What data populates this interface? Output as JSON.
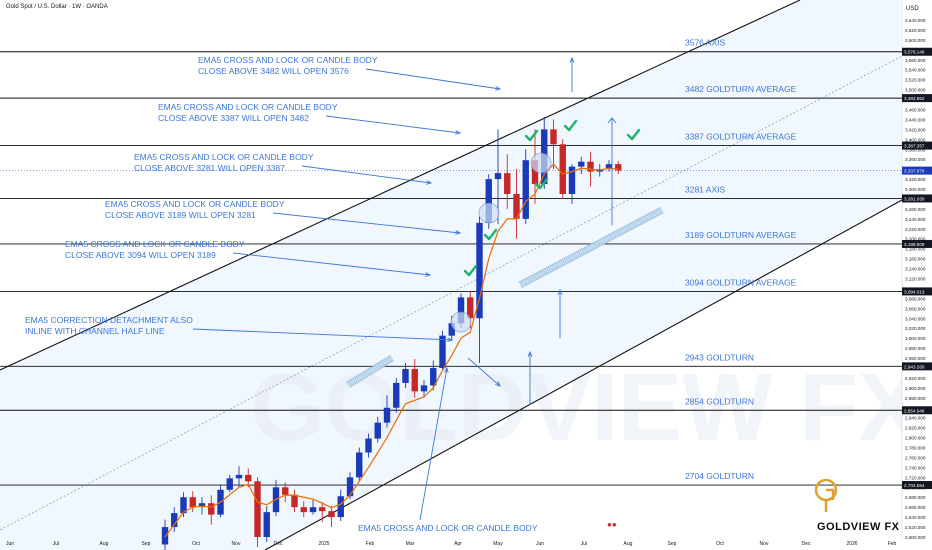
{
  "header": {
    "symbol_title": "Gold Spot / U.S. Dollar · 1W · OANDA",
    "currency": "USD"
  },
  "brand": {
    "name": "GOLDVIEW FX",
    "watermark": "GOLDVIEW FX"
  },
  "colors": {
    "up": "#1a3ab8",
    "down": "#c62828",
    "ema": "#ef6c00",
    "annotation": "#3a78d8",
    "check": "#1db36b",
    "level_line": "#111111",
    "channel_fill": "#e6f0ff"
  },
  "chart_data": {
    "type": "candlestick",
    "ylim": [
      2580,
      3650
    ],
    "y_ticks": [
      2600,
      2620,
      2640,
      2660,
      2680,
      2700,
      2720,
      2740,
      2760,
      2780,
      2800,
      2820,
      2840,
      2860,
      2880,
      2900,
      2920,
      2940,
      2960,
      2980,
      3000,
      3020,
      3040,
      3060,
      3080,
      3100,
      3120,
      3140,
      3160,
      3180,
      3200,
      3220,
      3240,
      3260,
      3280,
      3300,
      3320,
      3340,
      3360,
      3380,
      3400,
      3420,
      3440,
      3460,
      3480,
      3500,
      3520,
      3540,
      3560,
      3580,
      3600,
      3620,
      3640
    ],
    "x_ticks": [
      "Jun",
      "Jul",
      "Aug",
      "Sep",
      "Oct",
      "Nov",
      "Dec",
      "2025",
      "Feb",
      "Mar",
      "Apr",
      "May",
      "Jun",
      "Jul",
      "Aug",
      "Sep",
      "Oct",
      "Nov",
      "Dec",
      "2026",
      "Feb"
    ],
    "levels": [
      {
        "price": 3576.146,
        "tag": "3,576.146",
        "label": "3576 AXIS"
      },
      {
        "price": 3482.862,
        "tag": "3,482.862",
        "label": "3482 GOLDTURN AVERAGE"
      },
      {
        "price": 3387.357,
        "tag": "3,387.357",
        "label": "3387 GOLDTURN AVERAGE"
      },
      {
        "price": 3281.03,
        "tag": "3,281.030",
        "label": "3281 AXIS"
      },
      {
        "price": 3189.509,
        "tag": "3,189.509",
        "label": "3189 GOLDTURN AVERAGE"
      },
      {
        "price": 3094.013,
        "tag": "3,094.013",
        "label": "3094 GOLDTURN AVERAGE"
      },
      {
        "price": 2943.26,
        "tag": "2,943.260",
        "label": "2943 GOLDTURN"
      },
      {
        "price": 2854.946,
        "tag": "2,854.946",
        "label": "2854 GOLDTURN"
      },
      {
        "price": 2704.554,
        "tag": "2,704.554",
        "label": "2704 GOLDTURN"
      }
    ],
    "current_price": {
      "price": 3337.07,
      "tag": "3,337.070"
    },
    "candles": [
      [
        2585,
        2620,
        2570,
        2635
      ],
      [
        2620,
        2648,
        2610,
        2660
      ],
      [
        2648,
        2680,
        2640,
        2690
      ],
      [
        2680,
        2660,
        2650,
        2692
      ],
      [
        2660,
        2668,
        2645,
        2680
      ],
      [
        2668,
        2645,
        2625,
        2684
      ],
      [
        2645,
        2695,
        2640,
        2705
      ],
      [
        2695,
        2718,
        2690,
        2725
      ],
      [
        2718,
        2725,
        2700,
        2742
      ],
      [
        2725,
        2712,
        2700,
        2738
      ],
      [
        2712,
        2600,
        2580,
        2720
      ],
      [
        2600,
        2650,
        2590,
        2662
      ],
      [
        2650,
        2700,
        2642,
        2715
      ],
      [
        2700,
        2685,
        2670,
        2710
      ],
      [
        2685,
        2660,
        2650,
        2695
      ],
      [
        2660,
        2650,
        2640,
        2672
      ],
      [
        2650,
        2660,
        2645,
        2675
      ],
      [
        2660,
        2652,
        2630,
        2670
      ],
      [
        2652,
        2640,
        2620,
        2662
      ],
      [
        2640,
        2682,
        2632,
        2695
      ],
      [
        2682,
        2720,
        2676,
        2730
      ],
      [
        2720,
        2770,
        2712,
        2780
      ],
      [
        2770,
        2798,
        2760,
        2808
      ],
      [
        2798,
        2830,
        2790,
        2842
      ],
      [
        2830,
        2860,
        2820,
        2885
      ],
      [
        2860,
        2910,
        2850,
        2920
      ],
      [
        2910,
        2938,
        2900,
        2950
      ],
      [
        2938,
        2893,
        2880,
        2958
      ],
      [
        2893,
        2905,
        2880,
        2915
      ],
      [
        2905,
        2940,
        2895,
        2955
      ],
      [
        2940,
        3005,
        2935,
        3015
      ],
      [
        3005,
        3030,
        2995,
        3045
      ],
      [
        3030,
        3082,
        3020,
        3090
      ],
      [
        3082,
        3040,
        3020,
        3095
      ],
      [
        3040,
        3232,
        2950,
        3245
      ],
      [
        3232,
        3320,
        3220,
        3330
      ],
      [
        3320,
        3332,
        3230,
        3420
      ],
      [
        3332,
        3290,
        3260,
        3370
      ],
      [
        3290,
        3240,
        3200,
        3340
      ],
      [
        3240,
        3358,
        3230,
        3380
      ],
      [
        3358,
        3310,
        3270,
        3420
      ],
      [
        3310,
        3420,
        3300,
        3445
      ],
      [
        3420,
        3390,
        3340,
        3440
      ],
      [
        3390,
        3290,
        3280,
        3400
      ],
      [
        3290,
        3345,
        3270,
        3350
      ],
      [
        3345,
        3355,
        3330,
        3365
      ],
      [
        3355,
        3335,
        3305,
        3375
      ],
      [
        3335,
        3340,
        3325,
        3350
      ],
      [
        3340,
        3350,
        3335,
        3358
      ],
      [
        3350,
        3337,
        3330,
        3356
      ]
    ],
    "ema5": [
      2600,
      2625,
      2650,
      2660,
      2662,
      2660,
      2670,
      2685,
      2700,
      2706,
      2670,
      2665,
      2676,
      2684,
      2684,
      2680,
      2676,
      2668,
      2659,
      2666,
      2684,
      2712,
      2740,
      2770,
      2800,
      2835,
      2868,
      2875,
      2882,
      2900,
      2935,
      2965,
      3000,
      3012,
      3080,
      3160,
      3215,
      3240,
      3240,
      3275,
      3290,
      3330,
      3350,
      3330,
      3335,
      3342,
      3340,
      3338,
      3342,
      3340
    ]
  },
  "annotations": [
    {
      "l1": "EMA5 CROSS AND LOCK OR CANDLE BODY",
      "l2": "CLOSE ABOVE 3482 WILL OPEN 3576"
    },
    {
      "l1": "EMA5 CROSS AND LOCK OR CANDLE BODY",
      "l2": "CLOSE ABOVE 3387 WILL OPEN 3482"
    },
    {
      "l1": "EMA5 CROSS AND LOCK OR CANDLE BODY",
      "l2": "CLOSE ABOVE 3281 WILL OPEN 3387"
    },
    {
      "l1": "EMA5 CROSS AND LOCK OR CANDLE BODY",
      "l2": "CLOSE ABOVE 3189 WILL OPEN 3281"
    },
    {
      "l1": "EMA5 CROSS AND LOCK OR CANDLE BODY",
      "l2": "CLOSE ABOVE 3094 WILL OPEN 3189"
    },
    {
      "l1": "EMA5 CORRECTION DETACHMENT ALSO",
      "l2": "INLINE WITH CHANNEL HALF LINE"
    },
    {
      "l1": "EMA5 CROSS AND LOCK OR CANDLE BODY",
      "l2": ""
    }
  ]
}
